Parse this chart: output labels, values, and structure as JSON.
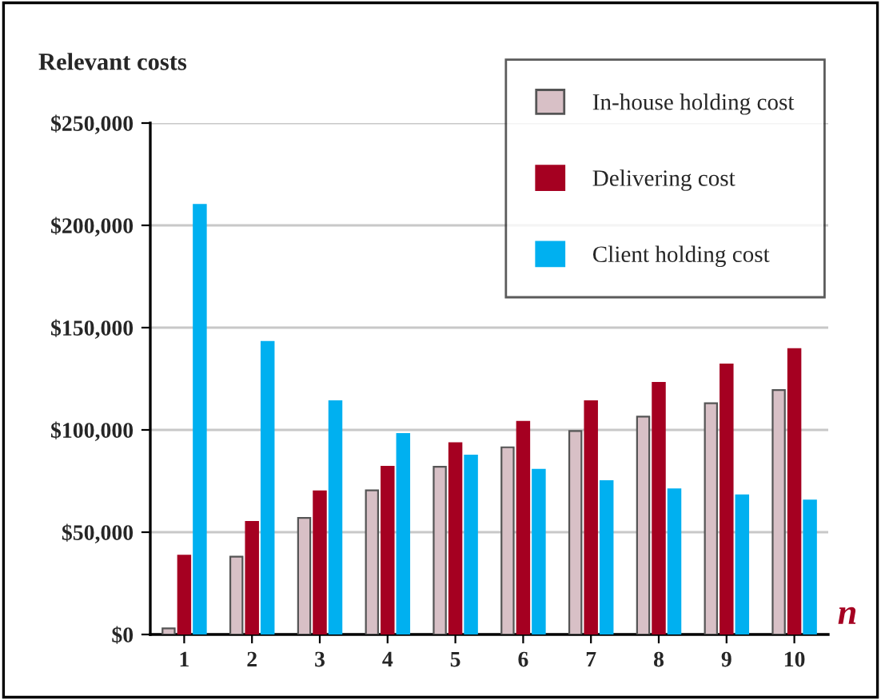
{
  "chart_data": {
    "type": "bar",
    "title": "Relevant costs",
    "xlabel": "n",
    "categories": [
      "1",
      "2",
      "3",
      "4",
      "5",
      "6",
      "7",
      "8",
      "9",
      "10"
    ],
    "series": [
      {
        "name": "In-house holding cost",
        "color": "#d8c0c6",
        "values": [
          3000,
          38000,
          57000,
          70500,
          82000,
          91500,
          99500,
          106500,
          113000,
          119500
        ]
      },
      {
        "name": "Delivering cost",
        "color": "#a50021",
        "values": [
          38500,
          55000,
          70000,
          82000,
          93500,
          104000,
          114000,
          123000,
          132000,
          139500
        ]
      },
      {
        "name": "Client holding cost",
        "color": "#00b0f0",
        "values": [
          210000,
          143000,
          114000,
          98000,
          87500,
          80500,
          75000,
          71000,
          68000,
          65500
        ]
      }
    ],
    "ylim": [
      0,
      250000
    ],
    "yticks": [
      {
        "value": 0,
        "label": "$0"
      },
      {
        "value": 50000,
        "label": "$50,000"
      },
      {
        "value": 100000,
        "label": "$100,000"
      },
      {
        "value": 150000,
        "label": "$150,000"
      },
      {
        "value": 200000,
        "label": "$200,000"
      },
      {
        "value": 250000,
        "label": "$250,000"
      }
    ],
    "grid": "y",
    "legend": "top right"
  }
}
